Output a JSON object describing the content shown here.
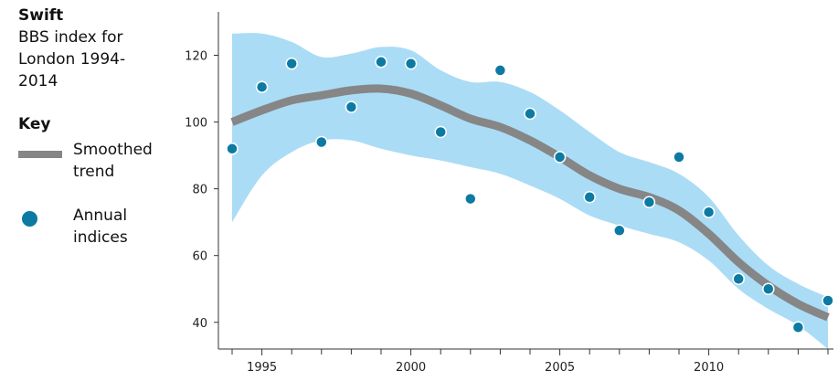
{
  "sidebar": {
    "species": "Swift",
    "subtitle": "BBS index for London 1994-2014",
    "key_title": "Key",
    "key_items": [
      {
        "label": "Smoothed trend",
        "swatch": "line"
      },
      {
        "label": "Annual indices",
        "swatch": "dot"
      }
    ]
  },
  "colors": {
    "band": "#aadcf6",
    "trend": "#868686",
    "points": "#0c7aa2"
  },
  "chart_data": {
    "type": "line",
    "title": "",
    "xlabel": "",
    "ylabel": "",
    "xlim": [
      1994,
      2014
    ],
    "ylim": [
      32,
      133
    ],
    "x_ticks": [
      1995,
      2000,
      2005,
      2010
    ],
    "y_ticks": [
      40,
      60,
      80,
      100,
      120
    ],
    "grid": false,
    "series": [
      {
        "name": "Smoothed trend",
        "kind": "line",
        "x": [
          1994,
          1995,
          1996,
          1997,
          1998,
          1999,
          2000,
          2001,
          2002,
          2003,
          2004,
          2005,
          2006,
          2007,
          2008,
          2009,
          2010,
          2011,
          2012,
          2013,
          2014
        ],
        "y": [
          100,
          103.5,
          106.5,
          108,
          109.5,
          110,
          108.5,
          105,
          101,
          98.5,
          94.5,
          89.5,
          84,
          80,
          77.5,
          73.5,
          66.5,
          58,
          51,
          45.5,
          41.5
        ]
      },
      {
        "name": "Confidence band upper",
        "kind": "band_upper",
        "x": [
          1994,
          1995,
          1996,
          1997,
          1998,
          1999,
          2000,
          2001,
          2002,
          2003,
          2004,
          2005,
          2006,
          2007,
          2008,
          2009,
          2010,
          2011,
          2012,
          2013,
          2014
        ],
        "y": [
          126.5,
          126.5,
          124,
          119.5,
          120.5,
          122.5,
          121.5,
          115.5,
          112,
          112,
          109,
          103.5,
          97,
          91,
          88,
          84.5,
          77.5,
          66,
          57,
          51.5,
          47.5
        ]
      },
      {
        "name": "Confidence band lower",
        "kind": "band_lower",
        "x": [
          1994,
          1995,
          1996,
          1997,
          1998,
          1999,
          2000,
          2001,
          2002,
          2003,
          2004,
          2005,
          2006,
          2007,
          2008,
          2009,
          2010,
          2011,
          2012,
          2013,
          2014
        ],
        "y": [
          70,
          84,
          91,
          94.5,
          94.5,
          92,
          90,
          88.5,
          86.5,
          84.5,
          81,
          77,
          72,
          69,
          66.5,
          64,
          58.5,
          50,
          44,
          39,
          32
        ]
      },
      {
        "name": "Annual indices",
        "kind": "scatter",
        "x": [
          1994,
          1995,
          1996,
          1997,
          1998,
          1999,
          2000,
          2001,
          2002,
          2003,
          2004,
          2005,
          2006,
          2007,
          2008,
          2009,
          2010,
          2011,
          2012,
          2013,
          2014
        ],
        "y": [
          92,
          110.5,
          117.5,
          94,
          104.5,
          118,
          117.5,
          97,
          77,
          115.5,
          102.5,
          89.5,
          77.5,
          67.5,
          76,
          89.5,
          73,
          53,
          50,
          38.5,
          46.5
        ]
      }
    ]
  }
}
